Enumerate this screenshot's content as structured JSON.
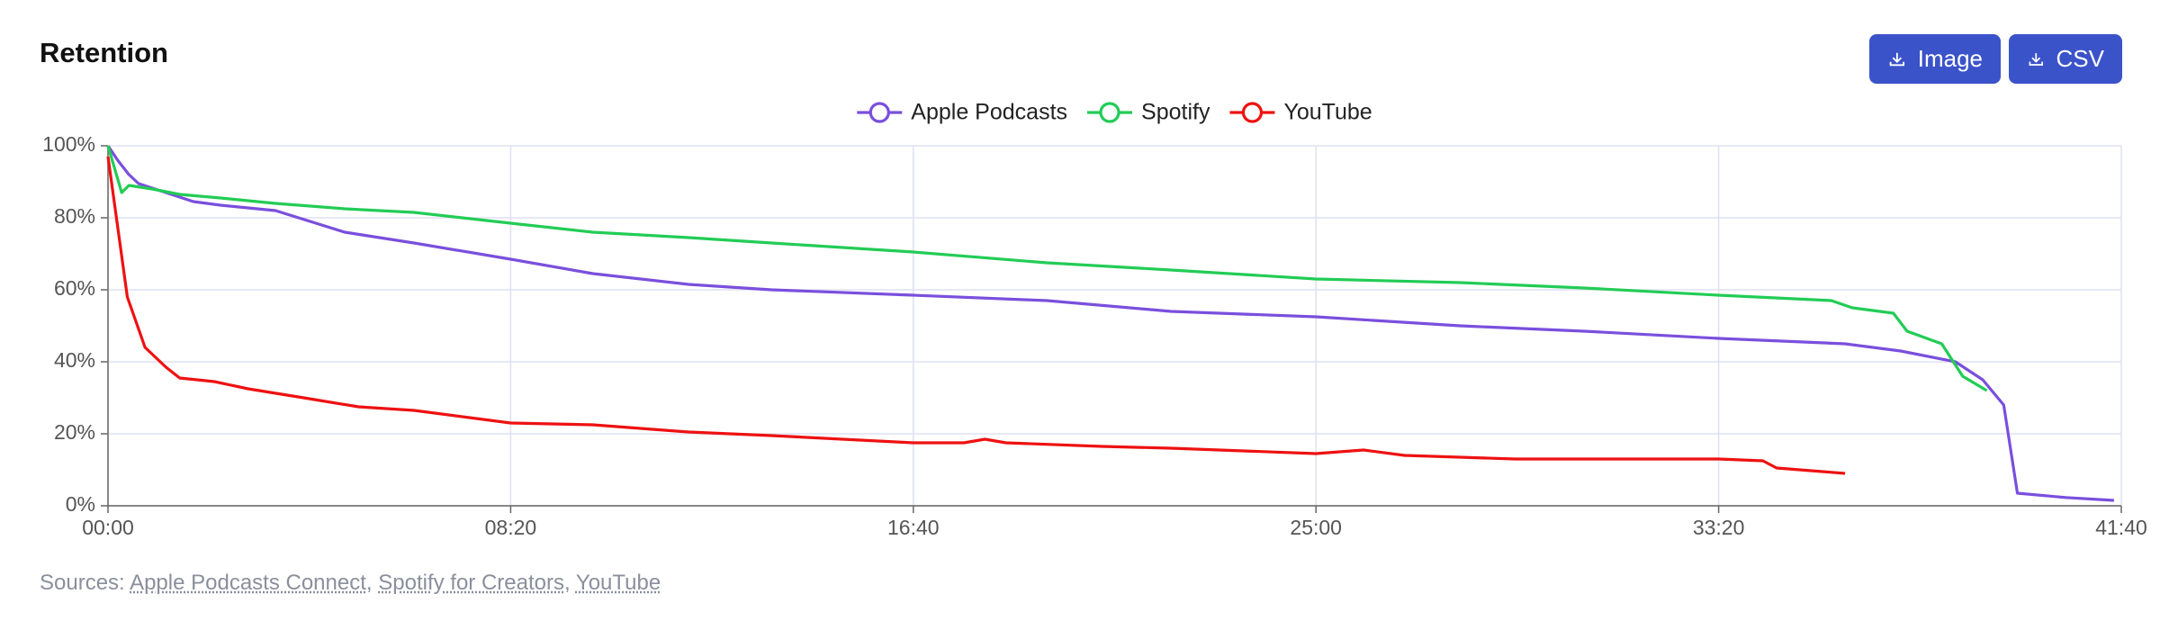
{
  "chart_data": {
    "type": "line",
    "title": "Retention",
    "xlim": [
      0,
      2500
    ],
    "xticks": [
      {
        "value": 0,
        "label": "00:00"
      },
      {
        "value": 500,
        "label": "08:20"
      },
      {
        "value": 1000,
        "label": "16:40"
      },
      {
        "value": 1500,
        "label": "25:00"
      },
      {
        "value": 2000,
        "label": "33:20"
      },
      {
        "value": 2500,
        "label": "41:40"
      }
    ],
    "ylim": [
      0,
      100
    ],
    "yticks": [
      {
        "value": 0,
        "label": "0%"
      },
      {
        "value": 20,
        "label": "20%"
      },
      {
        "value": 40,
        "label": "40%"
      },
      {
        "value": 60,
        "label": "60%"
      },
      {
        "value": 80,
        "label": "80%"
      },
      {
        "value": 100,
        "label": "100%"
      }
    ],
    "grid": true,
    "legend": "top",
    "series": [
      {
        "name": "Apple Podcasts",
        "color": "#7a4fdd",
        "x": [
          0,
          12,
          26,
          38,
          72,
          106,
          140,
          208,
          294,
          380,
          500,
          602,
          721,
          824,
          1000,
          1166,
          1320,
          1500,
          1679,
          1833,
          2000,
          2157,
          2226,
          2294,
          2328,
          2354,
          2371,
          2431,
          2491
        ],
        "values": [
          100,
          96,
          92,
          89.5,
          87,
          84.5,
          83.5,
          82,
          76,
          73,
          68.5,
          64.5,
          61.5,
          60,
          58.5,
          57,
          54,
          52.5,
          50,
          48.5,
          46.5,
          45,
          43,
          40,
          35,
          28,
          3.5,
          2.3,
          1.5
        ]
      },
      {
        "name": "Spotify",
        "color": "#22cc55",
        "x": [
          0,
          17,
          26,
          55,
          89,
          140,
          208,
          294,
          380,
          500,
          602,
          721,
          824,
          1000,
          1166,
          1320,
          1500,
          1679,
          1833,
          2000,
          2140,
          2166,
          2217,
          2234,
          2277,
          2303,
          2333
        ],
        "values": [
          100,
          87,
          89,
          88,
          86.5,
          85.5,
          84,
          82.5,
          81.5,
          78.5,
          76,
          74.5,
          73,
          70.5,
          67.5,
          65.5,
          63,
          62,
          60.5,
          58.5,
          57,
          55,
          53.5,
          48.5,
          45,
          36,
          32
        ]
      },
      {
        "name": "YouTube",
        "color": "#ee1111",
        "x": [
          0,
          24,
          46,
          72,
          89,
          132,
          174,
          243,
          311,
          380,
          500,
          602,
          721,
          824,
          1000,
          1063,
          1089,
          1115,
          1234,
          1320,
          1500,
          1559,
          1610,
          1747,
          2000,
          2055,
          2072,
          2157
        ],
        "values": [
          97,
          58,
          44,
          38.5,
          35.5,
          34.5,
          32.5,
          30,
          27.5,
          26.5,
          23,
          22.5,
          20.5,
          19.5,
          17.5,
          17.5,
          18.5,
          17.5,
          16.5,
          16,
          14.5,
          15.5,
          14,
          13,
          13,
          12.5,
          10.5,
          9
        ]
      }
    ]
  },
  "buttons": [
    "Image",
    "CSV"
  ],
  "sources": {
    "label": "Sources:",
    "items": [
      "Apple Podcasts Connect",
      "Spotify for Creators",
      "YouTube"
    ],
    "separator": ","
  }
}
